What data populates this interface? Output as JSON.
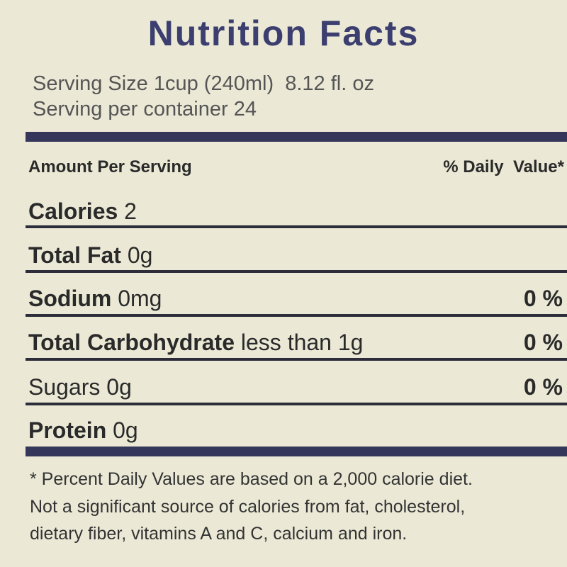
{
  "title": "Nutrition Facts",
  "serving": [
    "Serving Size 1cup (240ml)  8.12 fl. oz",
    "Serving per container 24"
  ],
  "header": {
    "left": "Amount Per Serving",
    "right": "% Daily  Value*"
  },
  "rows": [
    {
      "label": "Calories",
      "value": "2"
    },
    {
      "label": "Total Fat",
      "value": "0g"
    },
    {
      "label": "Sodium",
      "value": "0mg",
      "daily": "0 %"
    },
    {
      "label": "Total Carbohydrate",
      "value": "less than 1g",
      "daily": "0 %"
    },
    {
      "label": "Sugars",
      "value": "0g",
      "daily": "0 %"
    },
    {
      "label": "Protein",
      "value": "0g"
    }
  ],
  "footnote": [
    "* Percent Daily Values are based on a 2,000 calorie diet.",
    "Not a significant source of calories from fat, cholesterol,",
    "dietary fiber, vitamins A and C, calcium and iron."
  ]
}
